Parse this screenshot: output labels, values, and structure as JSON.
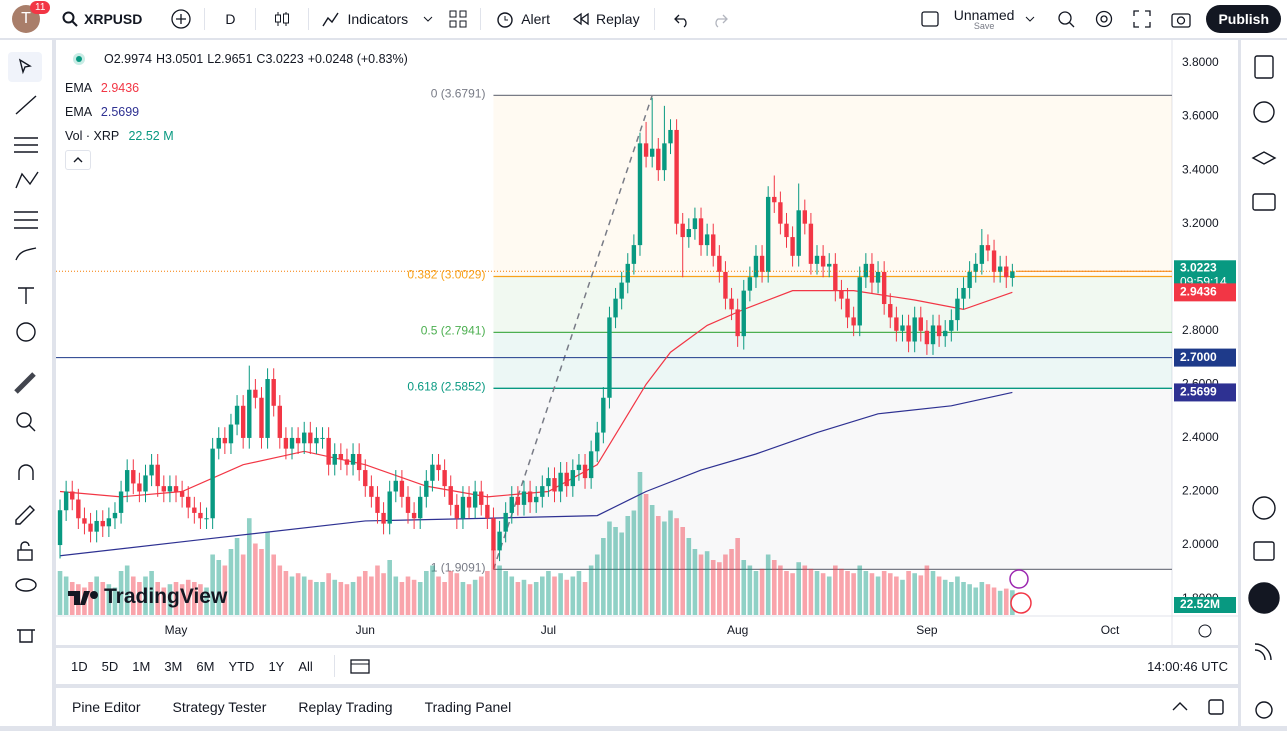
{
  "toolbar": {
    "avatar": "T",
    "badge": "11",
    "symbol": "XRPUSD",
    "interval": "D",
    "indicators": "Indicators",
    "alert": "Alert",
    "replay": "Replay",
    "layout": "Unnamed",
    "save": "Save",
    "publish": "Publish"
  },
  "legend": {
    "o": "O",
    "h": "H",
    "l": "L",
    "c": "C",
    "change": "+0.0248 (+0.83%)"
  },
  "timeframes": [
    "1D",
    "5D",
    "1M",
    "3M",
    "6M",
    "YTD",
    "1Y",
    "All"
  ],
  "clock": "14:00:46 UTC",
  "tabs": [
    "Pine Editor",
    "Strategy Tester",
    "Replay Trading",
    "Trading Panel"
  ],
  "watermark": "TradingView",
  "chart_data": {
    "type": "candlestick",
    "up_color": "#089981",
    "down_color": "#f23645",
    "open": [
      2.0,
      2.13,
      2.2,
      2.17,
      2.1,
      2.08,
      2.05,
      2.09,
      2.07,
      2.1,
      2.12,
      2.2,
      2.28,
      2.23,
      2.2,
      2.26,
      2.3,
      2.22,
      2.2,
      2.22,
      2.2,
      2.18,
      2.14,
      2.12,
      2.1,
      2.1,
      2.36,
      2.4,
      2.38,
      2.45,
      2.52,
      2.4,
      2.58,
      2.55,
      2.4,
      2.62,
      2.52,
      2.4,
      2.36,
      2.4,
      2.38,
      2.42,
      2.38,
      2.4,
      2.4,
      2.3,
      2.34,
      2.32,
      2.3,
      2.34,
      2.28,
      2.22,
      2.18,
      2.12,
      2.08,
      2.2,
      2.24,
      2.18,
      2.12,
      2.1,
      2.18,
      2.24,
      2.3,
      2.28,
      2.22,
      2.15,
      2.1,
      2.18,
      2.14,
      2.2,
      2.15,
      2.1,
      1.98,
      2.05,
      2.12,
      2.18,
      2.15,
      2.2,
      2.16,
      2.18,
      2.22,
      2.25,
      2.2,
      2.27,
      2.22,
      2.28,
      2.3,
      2.25,
      2.35,
      2.42,
      2.55,
      2.85,
      2.92,
      2.98,
      3.05,
      3.12,
      3.5,
      3.45,
      3.48,
      3.4,
      3.5,
      3.55,
      3.2,
      3.15,
      3.18,
      3.22,
      3.12,
      3.16,
      3.08,
      3.02,
      2.92,
      2.88,
      2.78,
      2.95,
      3.0,
      3.08,
      3.02,
      3.3,
      3.28,
      3.2,
      3.15,
      3.08,
      3.25,
      3.2,
      3.05,
      3.08,
      3.04,
      3.05,
      2.95,
      2.92,
      2.85,
      2.82,
      3.0,
      3.05,
      2.98,
      3.02,
      2.9,
      2.85,
      2.8,
      2.82,
      2.76,
      2.85,
      2.8,
      2.75,
      2.82,
      2.78,
      2.8,
      2.84,
      2.92,
      2.96,
      3.02,
      3.05,
      3.12,
      3.1,
      3.02,
      3.04,
      2.9974
    ],
    "high": [
      2.17,
      2.24,
      2.24,
      2.21,
      2.14,
      2.12,
      2.13,
      2.13,
      2.14,
      2.16,
      2.24,
      2.32,
      2.32,
      2.27,
      2.3,
      2.34,
      2.34,
      2.26,
      2.26,
      2.26,
      2.24,
      2.22,
      2.18,
      2.16,
      2.14,
      2.4,
      2.44,
      2.44,
      2.49,
      2.56,
      2.56,
      2.67,
      2.62,
      2.59,
      2.66,
      2.66,
      2.56,
      2.44,
      2.44,
      2.44,
      2.46,
      2.46,
      2.44,
      2.44,
      2.44,
      2.38,
      2.38,
      2.36,
      2.38,
      2.38,
      2.32,
      2.26,
      2.22,
      2.16,
      2.24,
      2.28,
      2.28,
      2.22,
      2.16,
      2.22,
      2.28,
      2.34,
      2.34,
      2.32,
      2.26,
      2.19,
      2.22,
      2.22,
      2.24,
      2.24,
      2.19,
      2.14,
      2.09,
      2.16,
      2.22,
      2.22,
      2.24,
      2.24,
      2.22,
      2.26,
      2.29,
      2.29,
      2.31,
      2.31,
      2.32,
      2.34,
      2.34,
      2.39,
      2.46,
      2.59,
      2.89,
      2.96,
      3.02,
      3.09,
      3.16,
      3.54,
      3.58,
      3.67,
      3.52,
      3.64,
      3.59,
      3.59,
      3.24,
      3.22,
      3.26,
      3.26,
      3.2,
      3.2,
      3.12,
      3.06,
      2.96,
      2.92,
      2.99,
      3.04,
      3.12,
      3.12,
      3.34,
      3.38,
      3.32,
      3.24,
      3.19,
      3.35,
      3.29,
      3.24,
      3.12,
      3.12,
      3.09,
      3.09,
      2.99,
      2.96,
      2.89,
      3.04,
      3.09,
      3.09,
      3.06,
      3.06,
      2.94,
      2.89,
      2.86,
      2.86,
      2.89,
      2.89,
      2.84,
      2.86,
      2.86,
      2.84,
      2.88,
      2.96,
      3.0,
      3.06,
      3.09,
      3.18,
      3.16,
      3.14,
      3.08,
      3.08,
      3.0501
    ],
    "low": [
      1.95,
      2.09,
      2.13,
      2.06,
      2.04,
      2.01,
      2.01,
      2.03,
      2.03,
      2.06,
      2.08,
      2.16,
      2.19,
      2.16,
      2.16,
      2.22,
      2.18,
      2.16,
      2.16,
      2.16,
      2.14,
      2.1,
      2.08,
      2.06,
      2.06,
      2.06,
      2.32,
      2.34,
      2.34,
      2.41,
      2.36,
      2.36,
      2.51,
      2.36,
      2.36,
      2.48,
      2.36,
      2.32,
      2.32,
      2.34,
      2.34,
      2.34,
      2.34,
      2.36,
      2.26,
      2.26,
      2.28,
      2.26,
      2.26,
      2.24,
      2.18,
      2.14,
      2.08,
      2.04,
      2.04,
      2.16,
      2.14,
      2.08,
      2.06,
      2.06,
      2.14,
      2.2,
      2.24,
      2.18,
      2.11,
      2.06,
      2.06,
      2.1,
      2.1,
      2.11,
      2.06,
      1.91,
      1.94,
      2.01,
      2.08,
      2.11,
      2.11,
      2.12,
      2.12,
      2.14,
      2.18,
      2.16,
      2.16,
      2.18,
      2.18,
      2.24,
      2.21,
      2.21,
      2.31,
      2.38,
      2.51,
      2.81,
      2.88,
      2.94,
      3.01,
      3.08,
      3.41,
      3.41,
      3.36,
      3.36,
      3.46,
      3.16,
      3.0,
      3.11,
      3.14,
      3.08,
      3.08,
      3.04,
      2.98,
      2.88,
      2.84,
      2.74,
      2.73,
      2.91,
      2.96,
      2.98,
      2.98,
      3.24,
      3.16,
      3.11,
      3.04,
      3.04,
      3.16,
      3.01,
      3.01,
      3.0,
      3.0,
      2.91,
      2.88,
      2.81,
      2.78,
      2.78,
      2.96,
      2.94,
      2.94,
      2.86,
      2.81,
      2.76,
      2.76,
      2.72,
      2.72,
      2.76,
      2.71,
      2.71,
      2.74,
      2.74,
      2.76,
      2.8,
      2.88,
      2.92,
      2.98,
      3.01,
      3.06,
      2.98,
      2.98,
      2.96,
      2.9651
    ],
    "close": [
      2.13,
      2.2,
      2.17,
      2.1,
      2.08,
      2.05,
      2.09,
      2.07,
      2.1,
      2.12,
      2.2,
      2.28,
      2.23,
      2.2,
      2.26,
      2.3,
      2.22,
      2.2,
      2.22,
      2.2,
      2.18,
      2.14,
      2.12,
      2.1,
      2.1,
      2.36,
      2.4,
      2.38,
      2.45,
      2.52,
      2.4,
      2.58,
      2.55,
      2.4,
      2.62,
      2.52,
      2.4,
      2.36,
      2.4,
      2.38,
      2.42,
      2.38,
      2.4,
      2.4,
      2.3,
      2.34,
      2.32,
      2.3,
      2.34,
      2.28,
      2.22,
      2.18,
      2.12,
      2.08,
      2.2,
      2.24,
      2.18,
      2.12,
      2.1,
      2.18,
      2.24,
      2.3,
      2.28,
      2.22,
      2.15,
      2.1,
      2.18,
      2.14,
      2.2,
      2.15,
      2.1,
      1.98,
      2.05,
      2.12,
      2.18,
      2.15,
      2.2,
      2.16,
      2.18,
      2.22,
      2.25,
      2.2,
      2.27,
      2.22,
      2.28,
      2.3,
      2.25,
      2.35,
      2.42,
      2.55,
      2.85,
      2.92,
      2.98,
      3.05,
      3.12,
      3.5,
      3.45,
      3.48,
      3.4,
      3.5,
      3.55,
      3.2,
      3.15,
      3.18,
      3.22,
      3.12,
      3.16,
      3.08,
      3.02,
      2.92,
      2.88,
      2.78,
      2.95,
      3.0,
      3.08,
      3.02,
      3.3,
      3.28,
      3.2,
      3.15,
      3.08,
      3.25,
      3.2,
      3.05,
      3.08,
      3.04,
      3.05,
      2.95,
      2.92,
      2.85,
      2.82,
      3.0,
      3.05,
      2.98,
      3.02,
      2.9,
      2.85,
      2.8,
      2.82,
      2.76,
      2.85,
      2.8,
      2.75,
      2.82,
      2.78,
      2.8,
      2.84,
      2.92,
      2.96,
      3.02,
      3.05,
      3.12,
      3.1,
      3.02,
      3.04,
      3.0,
      3.0223
    ],
    "volume": [
      40,
      35,
      30,
      28,
      25,
      30,
      35,
      30,
      28,
      25,
      40,
      45,
      35,
      30,
      35,
      40,
      30,
      25,
      28,
      30,
      28,
      32,
      30,
      28,
      25,
      55,
      50,
      45,
      60,
      70,
      55,
      88,
      65,
      60,
      75,
      55,
      45,
      40,
      35,
      38,
      35,
      32,
      30,
      30,
      38,
      32,
      30,
      28,
      30,
      35,
      40,
      35,
      45,
      38,
      50,
      35,
      30,
      35,
      32,
      30,
      40,
      45,
      35,
      30,
      40,
      38,
      30,
      28,
      32,
      35,
      40,
      60,
      45,
      40,
      35,
      30,
      32,
      28,
      30,
      35,
      40,
      35,
      38,
      32,
      35,
      40,
      30,
      45,
      55,
      70,
      85,
      80,
      75,
      90,
      95,
      130,
      110,
      100,
      90,
      85,
      95,
      88,
      80,
      70,
      60,
      55,
      58,
      50,
      48,
      55,
      60,
      70,
      50,
      45,
      40,
      42,
      55,
      50,
      45,
      40,
      38,
      48,
      45,
      42,
      40,
      38,
      35,
      45,
      42,
      40,
      38,
      45,
      40,
      38,
      35,
      40,
      38,
      35,
      32,
      40,
      38,
      36,
      45,
      40,
      35,
      32,
      30,
      35,
      30,
      28,
      25,
      30,
      28,
      25,
      22,
      24,
      22.52
    ],
    "volume_name": "Vol · XRP",
    "volume_value_label": "22.52 M",
    "volume_badge": "22.52M",
    "vlim": [
      0,
      130
    ],
    "ema_fast": {
      "name": "EMA",
      "color": "#f23645",
      "x": [
        0,
        10,
        20,
        30,
        40,
        50,
        60,
        70,
        80,
        88,
        92,
        96,
        100,
        106,
        112,
        120,
        130,
        140,
        148,
        156
      ],
      "values": [
        2.2,
        2.18,
        2.2,
        2.3,
        2.35,
        2.3,
        2.22,
        2.18,
        2.2,
        2.3,
        2.45,
        2.6,
        2.72,
        2.82,
        2.88,
        2.95,
        2.95,
        2.915,
        2.88,
        2.9436
      ]
    },
    "ema_slow": {
      "name": "EMA",
      "color": "#2e3192",
      "x": [
        0,
        23,
        50,
        70,
        88,
        96,
        105,
        114,
        124,
        134,
        146,
        156
      ],
      "values": [
        1.96,
        2.02,
        2.09,
        2.1,
        2.11,
        2.2,
        2.28,
        2.34,
        2.42,
        2.49,
        2.52,
        2.5699
      ]
    },
    "fib": {
      "anchor_x": [
        71,
        97
      ],
      "levels": [
        {
          "value": 3.6791,
          "label": "0 (3.6791)",
          "color": "#787b86"
        },
        {
          "value": 3.0029,
          "label": "0.382 (3.0029)",
          "color": "#f7a21b"
        },
        {
          "value": 2.7941,
          "label": "0.5 (2.7941)",
          "color": "#4caf50"
        },
        {
          "value": 2.5852,
          "label": "0.618 (2.5852)",
          "color": "#089981"
        },
        {
          "value": 1.9091,
          "label": "1 (1.9091)",
          "color": "#787b86"
        }
      ]
    },
    "hline": {
      "value": 2.7,
      "label": "2.7000",
      "color": "#1e3a8a"
    },
    "countdown": "09:59:14",
    "ylim": [
      1.7388,
      3.8859
    ],
    "yticks": [
      {
        "value": 3.8,
        "label": "3.8000"
      },
      {
        "value": 3.6,
        "label": "3.6000"
      },
      {
        "value": 3.4,
        "label": "3.4000"
      },
      {
        "value": 3.2,
        "label": "3.2000"
      },
      {
        "value": 3.0,
        "label": "3.0000"
      },
      {
        "value": 2.8,
        "label": "2.8000"
      },
      {
        "value": 2.6,
        "label": "2.6000"
      },
      {
        "value": 2.4,
        "label": "2.4000"
      },
      {
        "value": 2.2,
        "label": "2.2000"
      },
      {
        "value": 2.0,
        "label": "2.0000"
      },
      {
        "value": 1.8,
        "label": "1.8000"
      }
    ],
    "xlim": [
      -0.66,
      182.15
    ],
    "xticks": [
      {
        "value": 19,
        "label": "May"
      },
      {
        "value": 50,
        "label": "Jun"
      },
      {
        "value": 80,
        "label": "Jul"
      },
      {
        "value": 111,
        "label": "Aug"
      },
      {
        "value": 142,
        "label": "Sep"
      },
      {
        "value": 172,
        "label": "Oct"
      }
    ]
  }
}
